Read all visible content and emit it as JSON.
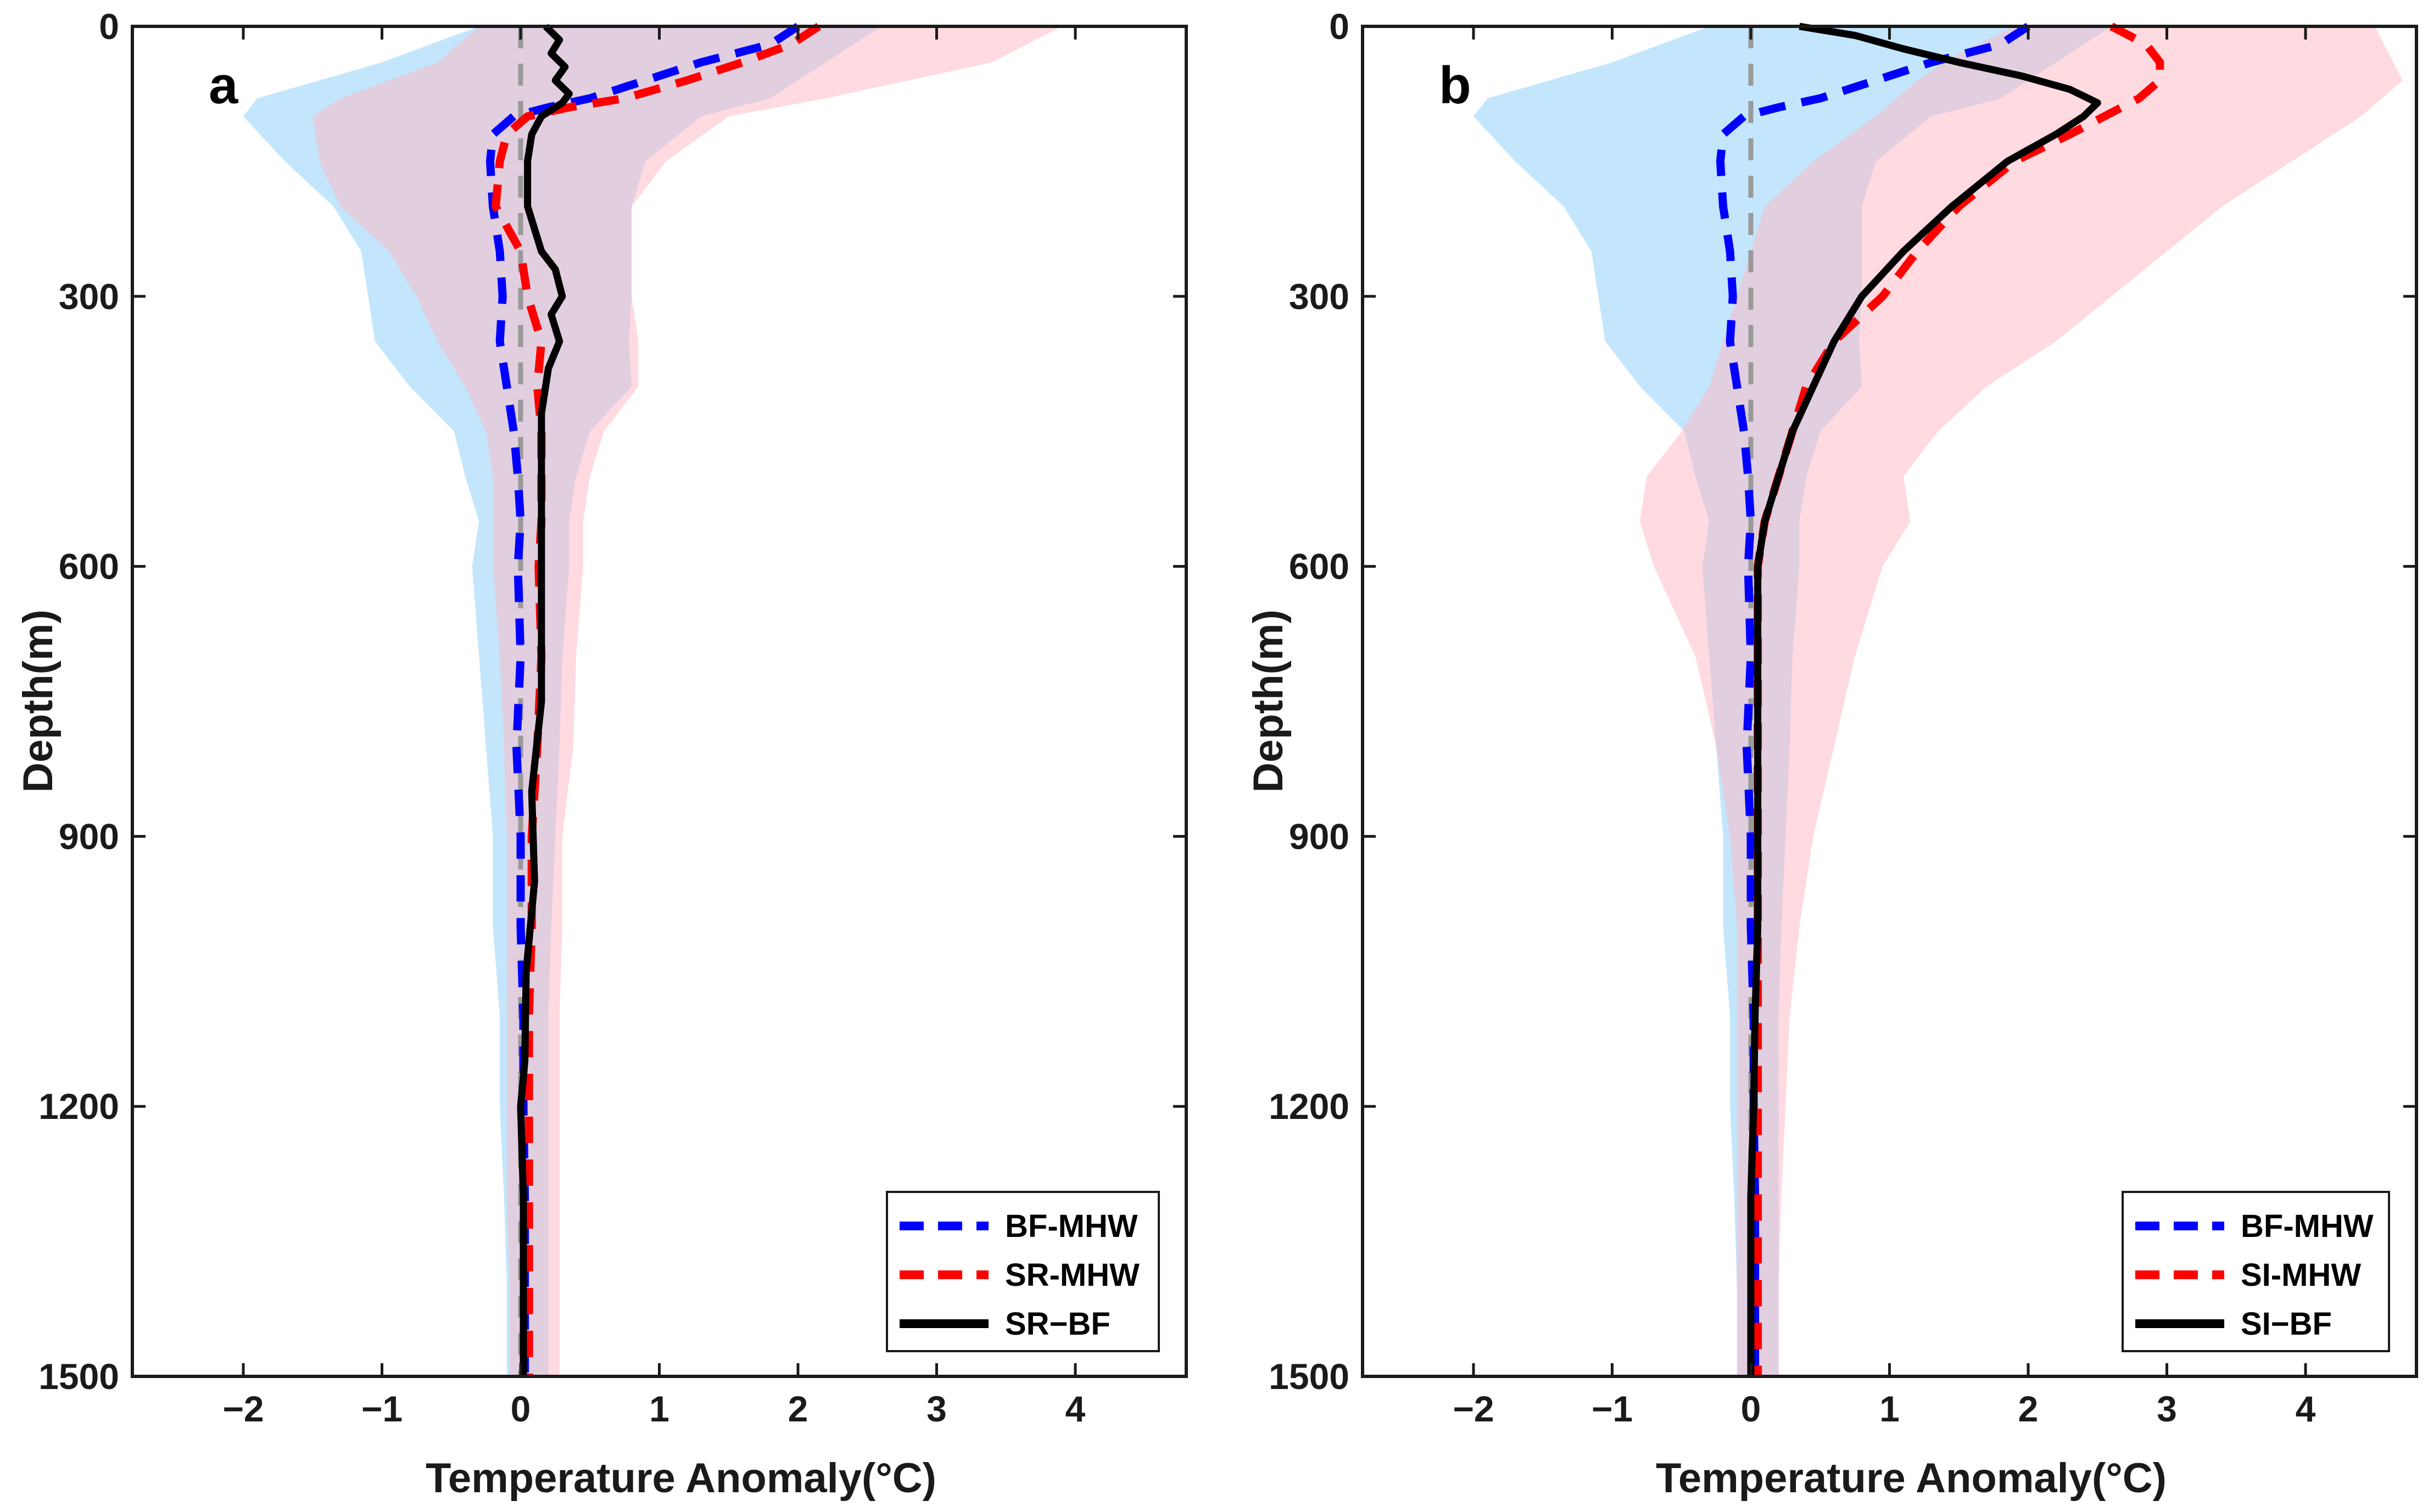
{
  "chart_data": [
    {
      "type": "line",
      "panel_label": "a",
      "xlabel": "Temperature Anomaly(°C)",
      "ylabel": "Depth(m)",
      "xlim": [
        -2.8,
        4.8
      ],
      "ylim": [
        0,
        1500
      ],
      "y_reversed": true,
      "xticks": [
        -2,
        -1,
        0,
        1,
        2,
        3,
        4
      ],
      "xtick_labels": [
        "−2",
        "−1",
        "0",
        "1",
        "2",
        "3",
        "4"
      ],
      "yticks": [
        0,
        300,
        600,
        900,
        1200,
        1500
      ],
      "ytick_labels": [
        "0",
        "300",
        "600",
        "900",
        "1200",
        "1500"
      ],
      "zero_line": true,
      "legend_position": "bottom-right",
      "legend": [
        "BF-MHW",
        "SR-MHW",
        "SR−BF"
      ],
      "series": [
        {
          "name": "BF-MHW",
          "color": "#0000ff",
          "style": "dashed",
          "depth": [
            0,
            20,
            40,
            60,
            80,
            90,
            100,
            120,
            150,
            200,
            250,
            300,
            350,
            400,
            450,
            500,
            550,
            600,
            700,
            800,
            900,
            1000,
            1100,
            1200,
            1300,
            1400,
            1500
          ],
          "values": [
            2.0,
            1.8,
            1.3,
            0.9,
            0.5,
            0.2,
            -0.05,
            -0.2,
            -0.22,
            -0.2,
            -0.15,
            -0.13,
            -0.15,
            -0.1,
            -0.05,
            -0.02,
            0.0,
            -0.02,
            0.0,
            -0.03,
            0.0,
            0.0,
            0.02,
            0.02,
            0.03,
            0.03,
            0.03
          ]
        },
        {
          "name": "SR-MHW",
          "color": "#ff0000",
          "style": "dashed",
          "depth": [
            0,
            20,
            40,
            60,
            80,
            90,
            100,
            120,
            150,
            200,
            250,
            300,
            350,
            400,
            450,
            500,
            550,
            600,
            700,
            800,
            900,
            1000,
            1100,
            1200,
            1300,
            1400,
            1500
          ],
          "values": [
            2.15,
            1.95,
            1.6,
            1.2,
            0.75,
            0.35,
            0.05,
            -0.1,
            -0.15,
            -0.18,
            0.0,
            0.05,
            0.15,
            0.12,
            0.15,
            0.15,
            0.15,
            0.13,
            0.15,
            0.12,
            0.08,
            0.08,
            0.06,
            0.06,
            0.06,
            0.06,
            0.06
          ]
        },
        {
          "name": "SR−BF",
          "color": "#000000",
          "style": "solid",
          "depth": [
            0,
            15,
            30,
            45,
            60,
            75,
            85,
            100,
            120,
            150,
            200,
            250,
            270,
            300,
            320,
            350,
            380,
            400,
            430,
            480,
            550,
            650,
            750,
            850,
            950,
            1050,
            1150,
            1200,
            1300,
            1400,
            1500
          ],
          "values": [
            0.18,
            0.28,
            0.22,
            0.32,
            0.25,
            0.35,
            0.3,
            0.15,
            0.08,
            0.05,
            0.05,
            0.15,
            0.25,
            0.3,
            0.22,
            0.28,
            0.2,
            0.18,
            0.15,
            0.15,
            0.15,
            0.15,
            0.15,
            0.08,
            0.1,
            0.04,
            0.03,
            0.0,
            0.02,
            0.02,
            0.02
          ]
        }
      ],
      "shading": [
        {
          "name": "BF-MHW spread",
          "color": "#87cefa",
          "opacity": 0.5,
          "depth": [
            0,
            40,
            80,
            100,
            150,
            200,
            250,
            300,
            350,
            400,
            450,
            500,
            550,
            600,
            700,
            800,
            900,
            1000,
            1100,
            1200,
            1300,
            1400,
            1500
          ],
          "lower": [
            -0.3,
            -1.0,
            -1.9,
            -2.0,
            -1.7,
            -1.35,
            -1.15,
            -1.1,
            -1.05,
            -0.8,
            -0.48,
            -0.4,
            -0.3,
            -0.35,
            -0.3,
            -0.25,
            -0.2,
            -0.2,
            -0.15,
            -0.15,
            -0.12,
            -0.1,
            -0.1
          ],
          "upper": [
            2.6,
            2.2,
            1.8,
            1.3,
            0.9,
            0.8,
            0.8,
            0.8,
            0.78,
            0.8,
            0.5,
            0.4,
            0.35,
            0.35,
            0.3,
            0.28,
            0.25,
            0.22,
            0.2,
            0.2,
            0.2,
            0.2,
            0.2
          ]
        },
        {
          "name": "SR-MHW spread",
          "color": "#ffb6c1",
          "opacity": 0.5,
          "depth": [
            0,
            40,
            80,
            100,
            150,
            200,
            250,
            300,
            350,
            400,
            450,
            500,
            550,
            600,
            700,
            800,
            900,
            1000,
            1100,
            1200,
            1300,
            1400,
            1500
          ],
          "lower": [
            -0.3,
            -0.6,
            -1.3,
            -1.5,
            -1.45,
            -1.3,
            -0.95,
            -0.75,
            -0.6,
            -0.4,
            -0.25,
            -0.2,
            -0.2,
            -0.2,
            -0.15,
            -0.12,
            -0.1,
            -0.1,
            -0.1,
            -0.1,
            -0.1,
            -0.08,
            -0.08
          ],
          "upper": [
            3.9,
            3.4,
            2.2,
            1.5,
            1.05,
            0.8,
            0.8,
            0.8,
            0.85,
            0.85,
            0.6,
            0.5,
            0.45,
            0.45,
            0.4,
            0.38,
            0.3,
            0.3,
            0.28,
            0.28,
            0.28,
            0.28,
            0.28
          ]
        }
      ]
    },
    {
      "type": "line",
      "panel_label": "b",
      "xlabel": "Temperature Anomaly(°C)",
      "ylabel": "Depth(m)",
      "xlim": [
        -2.8,
        4.8
      ],
      "ylim": [
        0,
        1500
      ],
      "y_reversed": true,
      "xticks": [
        -2,
        -1,
        0,
        1,
        2,
        3,
        4
      ],
      "xtick_labels": [
        "−2",
        "−1",
        "0",
        "1",
        "2",
        "3",
        "4"
      ],
      "yticks": [
        0,
        300,
        600,
        900,
        1200,
        1500
      ],
      "ytick_labels": [
        "0",
        "300",
        "600",
        "900",
        "1200",
        "1500"
      ],
      "zero_line": true,
      "legend_position": "bottom-right",
      "legend": [
        "BF-MHW",
        "SI-MHW",
        "SI−BF"
      ],
      "series": [
        {
          "name": "BF-MHW",
          "color": "#0000ff",
          "style": "dashed",
          "depth": [
            0,
            20,
            40,
            60,
            80,
            90,
            100,
            120,
            150,
            200,
            250,
            300,
            350,
            400,
            450,
            500,
            550,
            600,
            700,
            800,
            900,
            1000,
            1100,
            1200,
            1300,
            1400,
            1500
          ],
          "values": [
            2.0,
            1.8,
            1.3,
            0.9,
            0.5,
            0.2,
            -0.05,
            -0.2,
            -0.22,
            -0.2,
            -0.15,
            -0.13,
            -0.15,
            -0.1,
            -0.05,
            -0.02,
            0.0,
            -0.02,
            0.0,
            -0.03,
            0.0,
            0.0,
            0.02,
            0.02,
            0.03,
            0.03,
            0.03
          ]
        },
        {
          "name": "SI-MHW",
          "color": "#ff0000",
          "style": "dashed",
          "depth": [
            0,
            20,
            40,
            60,
            80,
            100,
            120,
            150,
            200,
            250,
            300,
            350,
            400,
            450,
            500,
            550,
            600,
            700,
            800,
            900,
            1000,
            1100,
            1200,
            1300,
            1400,
            1500
          ],
          "values": [
            2.6,
            2.85,
            2.95,
            2.95,
            2.8,
            2.55,
            2.3,
            1.9,
            1.5,
            1.2,
            0.95,
            0.6,
            0.4,
            0.3,
            0.2,
            0.1,
            0.05,
            0.05,
            0.05,
            0.05,
            0.05,
            0.05,
            0.05,
            0.05,
            0.05,
            0.05
          ]
        },
        {
          "name": "SI−BF",
          "color": "#000000",
          "style": "solid",
          "depth": [
            0,
            10,
            25,
            40,
            55,
            70,
            85,
            100,
            120,
            150,
            200,
            250,
            300,
            350,
            400,
            450,
            500,
            550,
            600,
            700,
            800,
            900,
            1000,
            1100,
            1200,
            1300,
            1400,
            1500
          ],
          "values": [
            0.35,
            0.75,
            1.1,
            1.5,
            1.95,
            2.3,
            2.5,
            2.4,
            2.2,
            1.85,
            1.45,
            1.1,
            0.8,
            0.6,
            0.45,
            0.3,
            0.2,
            0.1,
            0.05,
            0.05,
            0.05,
            0.05,
            0.05,
            0.03,
            0.02,
            0.0,
            0.0,
            0.0
          ]
        }
      ],
      "shading": [
        {
          "name": "BF-MHW spread",
          "color": "#87cefa",
          "opacity": 0.5,
          "depth": [
            0,
            40,
            80,
            100,
            150,
            200,
            250,
            300,
            350,
            400,
            450,
            500,
            550,
            600,
            700,
            800,
            900,
            1000,
            1100,
            1200,
            1300,
            1400,
            1500
          ],
          "lower": [
            -0.3,
            -1.0,
            -1.9,
            -2.0,
            -1.7,
            -1.35,
            -1.15,
            -1.1,
            -1.05,
            -0.8,
            -0.48,
            -0.4,
            -0.3,
            -0.35,
            -0.3,
            -0.25,
            -0.2,
            -0.2,
            -0.15,
            -0.15,
            -0.12,
            -0.1,
            -0.1
          ],
          "upper": [
            2.6,
            2.2,
            1.8,
            1.3,
            0.9,
            0.8,
            0.8,
            0.8,
            0.78,
            0.8,
            0.5,
            0.4,
            0.35,
            0.35,
            0.3,
            0.28,
            0.25,
            0.22,
            0.2,
            0.2,
            0.2,
            0.2,
            0.2
          ]
        },
        {
          "name": "SI-MHW spread",
          "color": "#ffb6c1",
          "opacity": 0.5,
          "depth": [
            0,
            30,
            60,
            100,
            150,
            200,
            250,
            300,
            350,
            400,
            450,
            500,
            550,
            600,
            700,
            800,
            900,
            1000,
            1100,
            1200,
            1300,
            1400,
            1500
          ],
          "lower": [
            1.9,
            1.5,
            1.2,
            0.9,
            0.45,
            0.1,
            0.0,
            -0.1,
            -0.2,
            -0.3,
            -0.5,
            -0.75,
            -0.8,
            -0.7,
            -0.4,
            -0.25,
            -0.15,
            -0.1,
            -0.1,
            -0.1,
            -0.1,
            -0.1,
            -0.1
          ],
          "upper": [
            4.5,
            4.6,
            4.7,
            4.4,
            3.9,
            3.4,
            3.0,
            2.6,
            2.2,
            1.7,
            1.35,
            1.1,
            1.15,
            0.95,
            0.75,
            0.6,
            0.45,
            0.35,
            0.28,
            0.25,
            0.22,
            0.2,
            0.2
          ]
        }
      ]
    }
  ]
}
